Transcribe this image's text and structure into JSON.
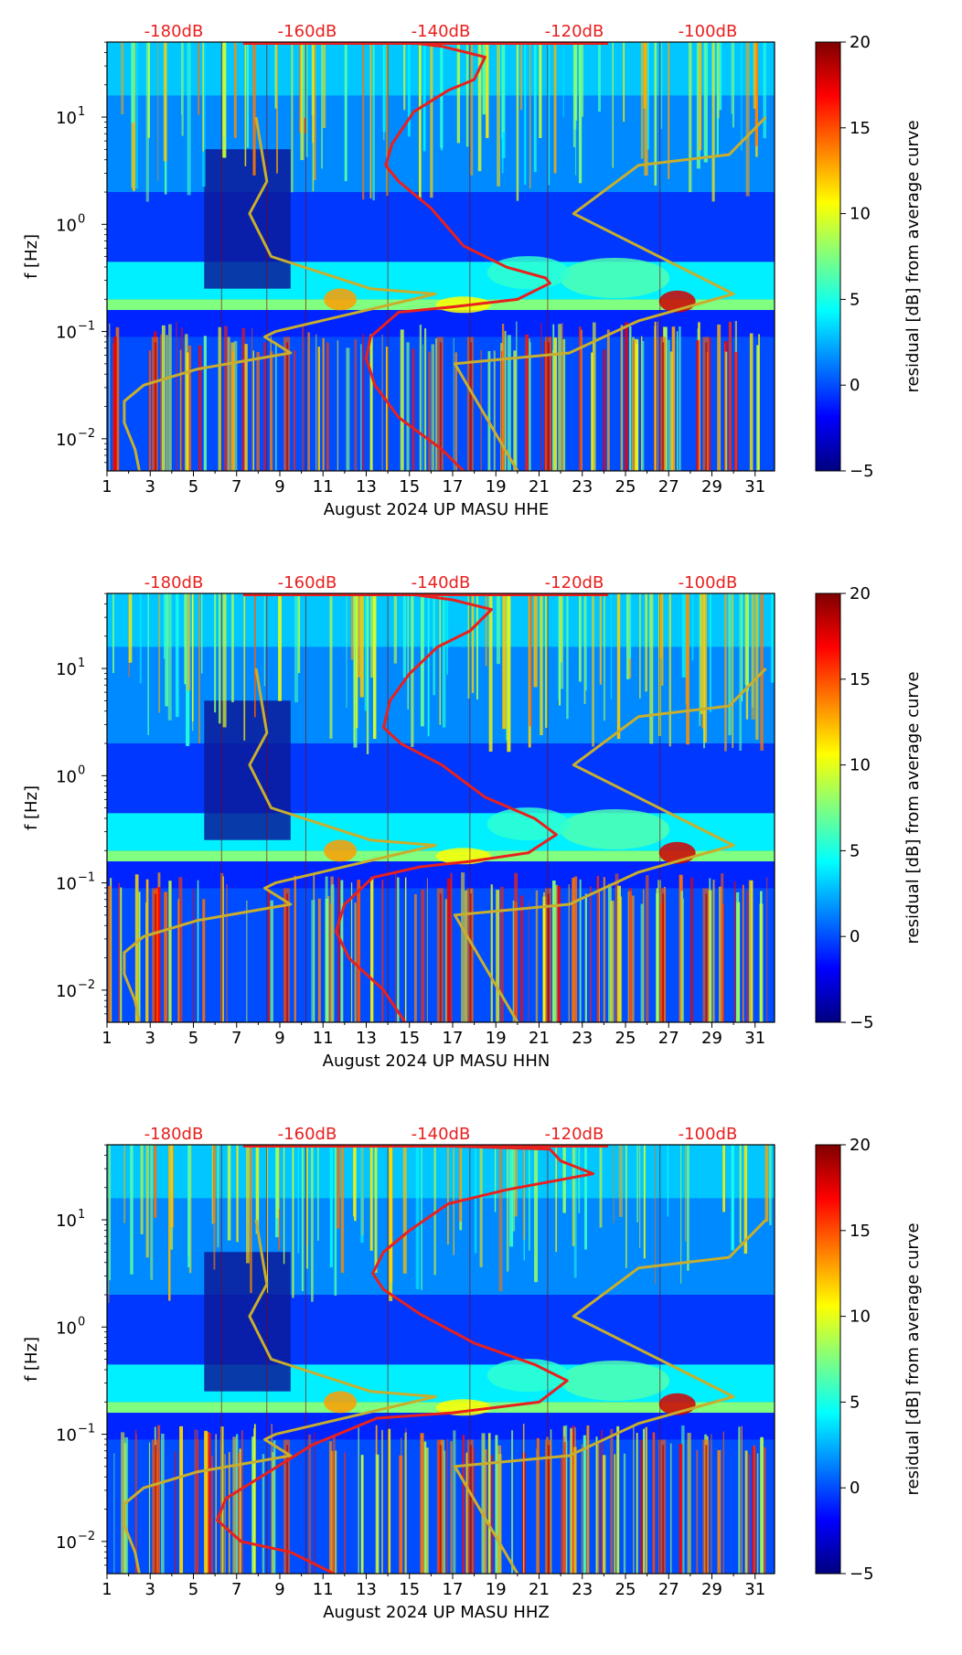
{
  "colors": {
    "red_curve": "#e8201e",
    "yellow_curve": "#c8ae2c",
    "db_label": "#e8201e",
    "colormap_jet": [
      "#00007f",
      "#0000ff",
      "#007fff",
      "#00ffff",
      "#7fff7f",
      "#ffff00",
      "#ff7f00",
      "#ff0000",
      "#7f0000"
    ]
  },
  "chart_data": [
    {
      "type": "heatmap",
      "title": "",
      "xlabel": "August 2024 UP MASU  HHE",
      "ylabel": "f [Hz]",
      "xlim": [
        1,
        31.9
      ],
      "ylim_log10": [
        -2.3,
        1.7
      ],
      "x_ticks": [
        "1",
        "3",
        "5",
        "7",
        "9",
        "11",
        "13",
        "15",
        "17",
        "19",
        "21",
        "23",
        "25",
        "27",
        "29",
        "31"
      ],
      "y_ticks": [
        {
          "exp": -2,
          "label": "10",
          "sup": "−2"
        },
        {
          "exp": -1,
          "label": "10",
          "sup": "−1"
        },
        {
          "exp": 0,
          "label": "10",
          "sup": "0"
        },
        {
          "exp": 1,
          "label": "10",
          "sup": "1"
        }
      ],
      "db_labels": [
        "-180dB",
        "-160dB",
        "-140dB",
        "-120dB",
        "-100dB"
      ],
      "colorbar": {
        "label": "residual [dB] from average curve",
        "min": -5,
        "max": 20,
        "ticks": [
          "20",
          "15",
          "10",
          "5",
          "0",
          "−5"
        ]
      },
      "red_curve": [
        [
          14.8,
          1.7
        ],
        [
          16.5,
          1.66
        ],
        [
          18.5,
          1.56
        ],
        [
          18.0,
          1.35
        ],
        [
          16.8,
          1.25
        ],
        [
          15.2,
          1.05
        ],
        [
          14.2,
          0.75
        ],
        [
          13.9,
          0.55
        ],
        [
          14.5,
          0.4
        ],
        [
          16.0,
          0.15
        ],
        [
          17.5,
          -0.2
        ],
        [
          19.5,
          -0.4
        ],
        [
          21.3,
          -0.5
        ],
        [
          21.5,
          -0.55
        ],
        [
          20.0,
          -0.7
        ],
        [
          17.0,
          -0.77
        ],
        [
          14.5,
          -0.82
        ],
        [
          13.2,
          -1.05
        ],
        [
          13.0,
          -1.25
        ],
        [
          13.4,
          -1.5
        ],
        [
          14.5,
          -1.8
        ],
        [
          16.5,
          -2.1
        ],
        [
          17.5,
          -2.3
        ]
      ],
      "yellow_curve": [
        [
          7.9,
          1.0
        ],
        [
          8.4,
          0.4
        ],
        [
          7.6,
          0.1
        ],
        [
          8.6,
          -0.3
        ],
        [
          13.2,
          -0.6
        ],
        [
          16.2,
          -0.65
        ],
        [
          8.8,
          -1.0
        ],
        [
          8.3,
          -1.05
        ],
        [
          9.5,
          -1.2
        ],
        [
          5.2,
          -1.35
        ],
        [
          2.7,
          -1.5
        ],
        [
          1.8,
          -1.65
        ],
        [
          1.8,
          -1.85
        ],
        [
          2.3,
          -2.1
        ],
        [
          2.5,
          -2.3
        ]
      ],
      "yellow_curve_2": [
        [
          31.5,
          1.0
        ],
        [
          29.8,
          0.65
        ],
        [
          25.6,
          0.55
        ],
        [
          22.6,
          0.1
        ],
        [
          30.0,
          -0.65
        ],
        [
          25.6,
          -0.9
        ],
        [
          22.4,
          -1.2
        ],
        [
          17.1,
          -1.3
        ],
        [
          20.0,
          -2.3
        ]
      ]
    },
    {
      "type": "heatmap",
      "title": "",
      "xlabel": "August 2024 UP MASU  HHN",
      "ylabel": "f [Hz]",
      "xlim": [
        1,
        31.9
      ],
      "ylim_log10": [
        -2.3,
        1.7
      ],
      "x_ticks": [
        "1",
        "3",
        "5",
        "7",
        "9",
        "11",
        "13",
        "15",
        "17",
        "19",
        "21",
        "23",
        "25",
        "27",
        "29",
        "31"
      ],
      "y_ticks": [
        {
          "exp": -2,
          "label": "10",
          "sup": "−2"
        },
        {
          "exp": -1,
          "label": "10",
          "sup": "−1"
        },
        {
          "exp": 0,
          "label": "10",
          "sup": "0"
        },
        {
          "exp": 1,
          "label": "10",
          "sup": "1"
        }
      ],
      "db_labels": [
        "-180dB",
        "-160dB",
        "-140dB",
        "-120dB",
        "-100dB"
      ],
      "colorbar": {
        "label": "residual [dB] from average curve",
        "min": -5,
        "max": 20,
        "ticks": [
          "20",
          "15",
          "10",
          "5",
          "0",
          "−5"
        ]
      },
      "red_curve": [
        [
          14.8,
          1.7
        ],
        [
          17.0,
          1.64
        ],
        [
          18.8,
          1.55
        ],
        [
          17.8,
          1.35
        ],
        [
          16.3,
          1.2
        ],
        [
          15.0,
          0.95
        ],
        [
          14.1,
          0.7
        ],
        [
          13.8,
          0.45
        ],
        [
          14.6,
          0.3
        ],
        [
          16.5,
          0.1
        ],
        [
          18.5,
          -0.2
        ],
        [
          20.8,
          -0.4
        ],
        [
          21.8,
          -0.55
        ],
        [
          20.5,
          -0.72
        ],
        [
          17.8,
          -0.8
        ],
        [
          15.5,
          -0.85
        ],
        [
          13.3,
          -0.95
        ],
        [
          12.0,
          -1.2
        ],
        [
          11.6,
          -1.45
        ],
        [
          12.2,
          -1.7
        ],
        [
          13.8,
          -2.0
        ],
        [
          14.8,
          -2.3
        ]
      ],
      "yellow_curve": [
        [
          7.9,
          1.0
        ],
        [
          8.4,
          0.4
        ],
        [
          7.6,
          0.1
        ],
        [
          8.6,
          -0.3
        ],
        [
          13.2,
          -0.6
        ],
        [
          16.2,
          -0.65
        ],
        [
          8.8,
          -1.0
        ],
        [
          8.3,
          -1.05
        ],
        [
          9.5,
          -1.2
        ],
        [
          5.2,
          -1.35
        ],
        [
          2.7,
          -1.5
        ],
        [
          1.8,
          -1.65
        ],
        [
          1.8,
          -1.85
        ],
        [
          2.3,
          -2.1
        ],
        [
          2.5,
          -2.3
        ]
      ],
      "yellow_curve_2": [
        [
          31.5,
          1.0
        ],
        [
          29.8,
          0.65
        ],
        [
          25.6,
          0.55
        ],
        [
          22.6,
          0.1
        ],
        [
          30.0,
          -0.65
        ],
        [
          25.6,
          -0.9
        ],
        [
          22.4,
          -1.2
        ],
        [
          17.1,
          -1.3
        ],
        [
          20.0,
          -2.3
        ]
      ]
    },
    {
      "type": "heatmap",
      "title": "",
      "xlabel": "August 2024 UP MASU  HHZ",
      "ylabel": "f [Hz]",
      "xlim": [
        1,
        31.9
      ],
      "ylim_log10": [
        -2.3,
        1.7
      ],
      "x_ticks": [
        "1",
        "3",
        "5",
        "7",
        "9",
        "11",
        "13",
        "15",
        "17",
        "19",
        "21",
        "23",
        "25",
        "27",
        "29",
        "31"
      ],
      "y_ticks": [
        {
          "exp": -2,
          "label": "10",
          "sup": "−2"
        },
        {
          "exp": -1,
          "label": "10",
          "sup": "−1"
        },
        {
          "exp": 0,
          "label": "10",
          "sup": "0"
        },
        {
          "exp": 1,
          "label": "10",
          "sup": "1"
        }
      ],
      "db_labels": [
        "-180dB",
        "-160dB",
        "-140dB",
        "-120dB",
        "-100dB"
      ],
      "colorbar": {
        "label": "residual [dB] from average curve",
        "min": -5,
        "max": 20,
        "ticks": [
          "20",
          "15",
          "10",
          "5",
          "0",
          "−5"
        ]
      },
      "red_curve": [
        [
          14.8,
          1.7
        ],
        [
          21.5,
          1.66
        ],
        [
          22.0,
          1.55
        ],
        [
          23.5,
          1.43
        ],
        [
          19.5,
          1.28
        ],
        [
          16.8,
          1.15
        ],
        [
          15.0,
          0.9
        ],
        [
          13.8,
          0.7
        ],
        [
          13.3,
          0.5
        ],
        [
          13.8,
          0.35
        ],
        [
          15.5,
          0.12
        ],
        [
          18.0,
          -0.15
        ],
        [
          20.8,
          -0.35
        ],
        [
          22.3,
          -0.5
        ],
        [
          21.0,
          -0.7
        ],
        [
          17.0,
          -0.8
        ],
        [
          13.5,
          -0.85
        ],
        [
          10.5,
          -1.1
        ],
        [
          8.5,
          -1.35
        ],
        [
          6.5,
          -1.6
        ],
        [
          6.1,
          -1.8
        ],
        [
          7.2,
          -2.0
        ],
        [
          9.5,
          -2.1
        ],
        [
          11.5,
          -2.3
        ]
      ],
      "yellow_curve": [
        [
          7.9,
          1.0
        ],
        [
          8.4,
          0.4
        ],
        [
          7.6,
          0.1
        ],
        [
          8.6,
          -0.3
        ],
        [
          13.2,
          -0.6
        ],
        [
          16.2,
          -0.65
        ],
        [
          8.8,
          -1.0
        ],
        [
          8.3,
          -1.05
        ],
        [
          9.5,
          -1.2
        ],
        [
          5.2,
          -1.35
        ],
        [
          2.7,
          -1.5
        ],
        [
          1.8,
          -1.65
        ],
        [
          1.8,
          -1.85
        ],
        [
          2.3,
          -2.1
        ],
        [
          2.5,
          -2.3
        ]
      ],
      "yellow_curve_2": [
        [
          31.5,
          1.0
        ],
        [
          29.8,
          0.65
        ],
        [
          25.6,
          0.55
        ],
        [
          22.6,
          0.1
        ],
        [
          30.0,
          -0.65
        ],
        [
          25.6,
          -0.9
        ],
        [
          22.4,
          -1.2
        ],
        [
          17.1,
          -1.3
        ],
        [
          20.0,
          -2.3
        ]
      ]
    }
  ]
}
